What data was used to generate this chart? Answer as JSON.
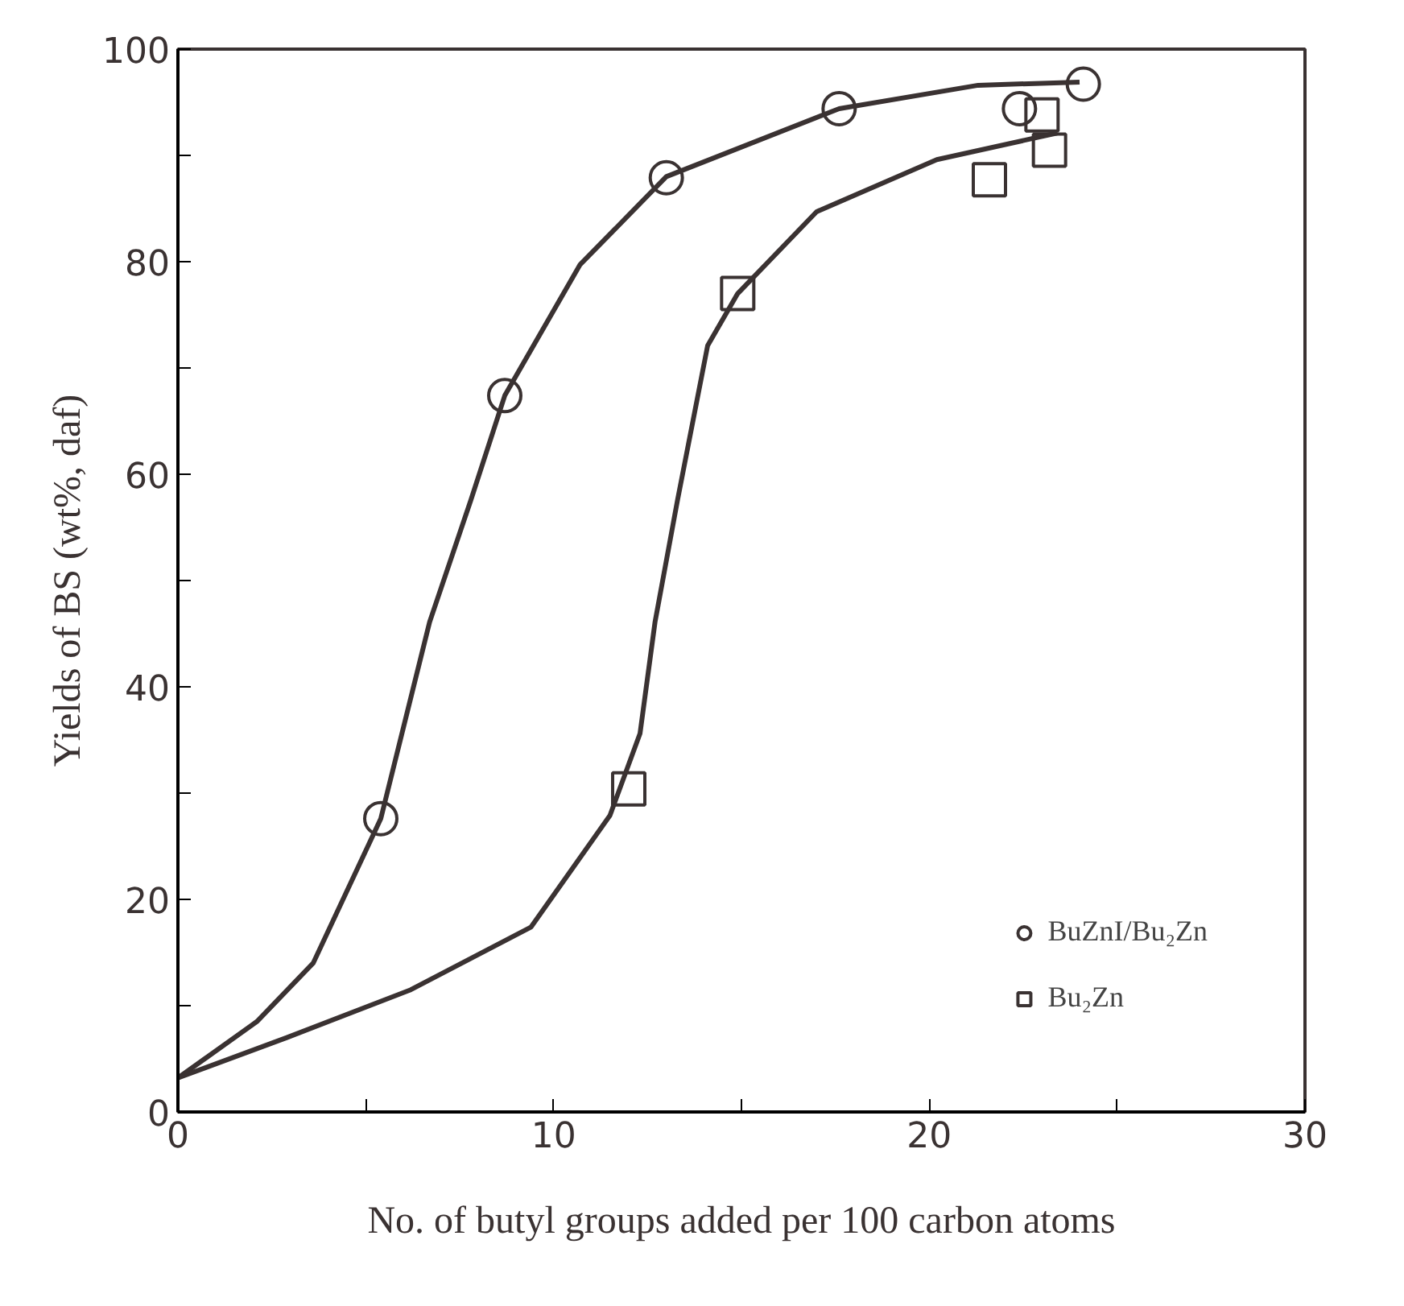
{
  "chart_data": {
    "type": "scatter",
    "xlabel": "No. of butyl groups added per 100 carbon atoms",
    "ylabel": "Yields of BS (wt%, daf)",
    "xlim": [
      0,
      30
    ],
    "ylim": [
      0,
      100
    ],
    "xticks": [
      0,
      {
        "value": 5,
        "label": null
      },
      10,
      {
        "value": 15,
        "label": null
      },
      20,
      {
        "value": 25,
        "label": null
      },
      30
    ],
    "yticks": [
      0,
      {
        "value": 10,
        "label": null
      },
      20,
      {
        "value": 30,
        "label": null
      },
      40,
      {
        "value": 50,
        "label": null
      },
      60,
      {
        "value": 70,
        "label": null
      },
      80,
      {
        "value": 90,
        "label": null
      },
      100
    ],
    "grid": false,
    "legend": "bottom right",
    "series": [
      {
        "name": "BuZnI/Bu₂Zn",
        "color": "#3a3232",
        "marker": "circle",
        "x": [
          5.4,
          8.7,
          13.0,
          17.6,
          22.4,
          24.1
        ],
        "values": [
          27.6,
          67.4,
          87.9,
          94.4,
          94.4,
          96.7
        ]
      },
      {
        "name": "Bu₂Zn",
        "color": "#3a3232",
        "marker": "square",
        "x": [
          12.0,
          14.9,
          21.6,
          23.0,
          23.2
        ],
        "values": [
          30.4,
          77.0,
          87.7,
          93.8,
          90.5
        ]
      },
      {
        "type": "line",
        "color": "#3a3232",
        "line_style": "solid",
        "x": [
          0,
          2.1,
          3.6,
          5.4,
          6.7,
          7.8,
          8.7,
          10.7,
          13.0,
          17.6,
          21.3,
          24.0
        ],
        "values": [
          3.2,
          8.5,
          14,
          27.6,
          46.1,
          57.6,
          67.4,
          79.7,
          88,
          94.4,
          96.6,
          96.9
        ]
      },
      {
        "type": "line",
        "color": "#3a3232",
        "line_style": "solid",
        "x": [
          0,
          2.9,
          6.2,
          9.4,
          11.5,
          12.3,
          12.7,
          13.3,
          14.1,
          14.9,
          17.0,
          20.2,
          23.4
        ],
        "values": [
          3.2,
          7.0,
          11.5,
          17.4,
          27.9,
          35.6,
          46.1,
          57.6,
          72.1,
          77,
          84.7,
          89.6,
          92.1
        ]
      }
    ]
  }
}
